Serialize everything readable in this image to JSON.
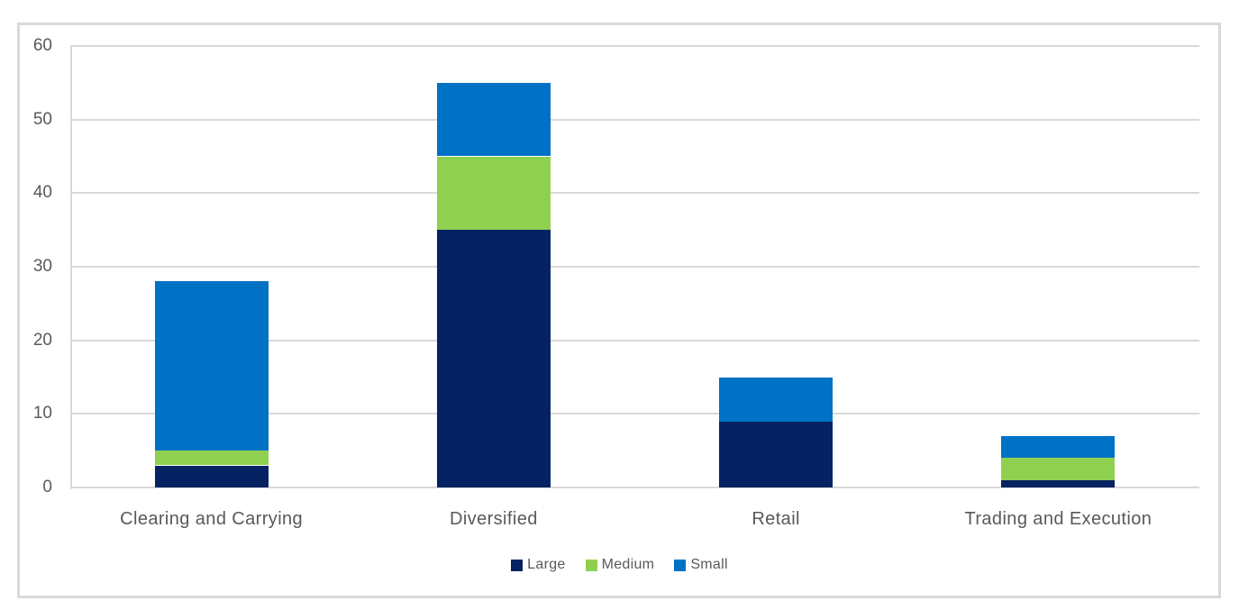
{
  "chart_data": {
    "type": "bar",
    "stacked": true,
    "title": "",
    "xlabel": "",
    "ylabel": "",
    "categories": [
      "Clearing and Carrying",
      "Diversified",
      "Retail",
      "Trading and Execution"
    ],
    "series": [
      {
        "name": "Large",
        "color": "#052262",
        "values": [
          3,
          35,
          9,
          1
        ]
      },
      {
        "name": "Medium",
        "color": "#90D050",
        "values": [
          2,
          10,
          0,
          3
        ]
      },
      {
        "name": "Small",
        "color": "#0072C5",
        "values": [
          23,
          10,
          6,
          3
        ]
      }
    ],
    "stack_order_bottom_to_top": [
      "Large",
      "Medium",
      "Small"
    ],
    "ylim": [
      0,
      60
    ],
    "yticks": [
      0,
      10,
      20,
      30,
      40,
      50,
      60
    ],
    "grid": true,
    "legend_position": "bottom-center",
    "colors": {
      "gridline": "#d9d9d9",
      "axis_line": "#d9d9d9",
      "frame_border": "#d9d9d9",
      "axis_text": "#595959",
      "background": "#ffffff"
    }
  }
}
